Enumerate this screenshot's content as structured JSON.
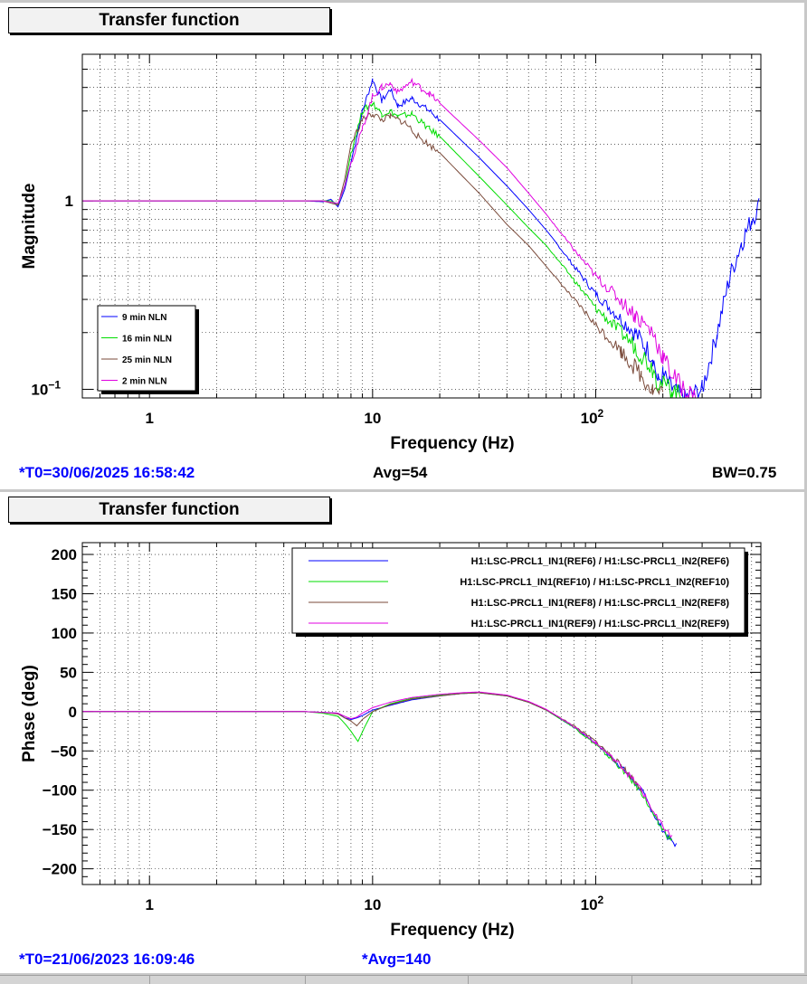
{
  "panels": {
    "top": {
      "title": "Transfer function",
      "status_t0": "*T0=30/06/2025 16:58:42",
      "status_avg": "Avg=54",
      "status_bw": "BW=0.75"
    },
    "bottom": {
      "title": "Transfer function",
      "status_t0": "*T0=21/06/2023 16:09:46",
      "status_avg": "*Avg=140"
    }
  },
  "colors": {
    "blue": "#0000ff",
    "green": "#00dd00",
    "brown": "#7a4a3a",
    "magenta": "#e000e0"
  },
  "chart_data": [
    {
      "type": "line",
      "title": "",
      "xlabel": "Frequency (Hz)",
      "ylabel": "Magnitude",
      "xscale": "log",
      "yscale": "log",
      "xlim": [
        0.5,
        550
      ],
      "ylim": [
        0.09,
        6
      ],
      "x_ticks": [
        "1",
        "10",
        "10²"
      ],
      "y_ticks": [
        "10⁻¹",
        "1"
      ],
      "grid": true,
      "legend_position": "bottom-left",
      "series": [
        {
          "name": "9 min NLN",
          "color": "#0000ff",
          "points": [
            [
              0.5,
              1
            ],
            [
              5,
              1
            ],
            [
              6,
              0.99
            ],
            [
              6.5,
              1.02
            ],
            [
              7,
              0.93
            ],
            [
              7.5,
              1.15
            ],
            [
              8,
              1.6
            ],
            [
              9,
              3
            ],
            [
              10,
              4.4
            ],
            [
              11,
              3.4
            ],
            [
              12,
              3.9
            ],
            [
              13,
              3.2
            ],
            [
              15,
              3.5
            ],
            [
              18,
              3.0
            ],
            [
              20,
              2.7
            ],
            [
              30,
              1.7
            ],
            [
              40,
              1.2
            ],
            [
              50,
              0.9
            ],
            [
              60,
              0.7
            ],
            [
              80,
              0.45
            ],
            [
              100,
              0.32
            ],
            [
              150,
              0.2
            ],
            [
              180,
              0.15
            ],
            [
              190,
              0.11
            ],
            [
              200,
              0.12
            ],
            [
              220,
              0.1
            ],
            [
              250,
              0.09
            ],
            [
              300,
              0.1
            ],
            [
              350,
              0.2
            ],
            [
              400,
              0.4
            ],
            [
              450,
              0.6
            ],
            [
              500,
              0.8
            ],
            [
              540,
              0.95
            ]
          ]
        },
        {
          "name": "16 min NLN",
          "color": "#00dd00",
          "points": [
            [
              0.5,
              1
            ],
            [
              5,
              1
            ],
            [
              6,
              1.0
            ],
            [
              6.5,
              1.0
            ],
            [
              7,
              0.96
            ],
            [
              7.5,
              1.2
            ],
            [
              8,
              1.8
            ],
            [
              9,
              3
            ],
            [
              10,
              3.3
            ],
            [
              11,
              2.9
            ],
            [
              12,
              3.0
            ],
            [
              13,
              2.8
            ],
            [
              15,
              2.9
            ],
            [
              18,
              2.4
            ],
            [
              20,
              2.2
            ],
            [
              30,
              1.35
            ],
            [
              40,
              0.95
            ],
            [
              50,
              0.72
            ],
            [
              60,
              0.58
            ],
            [
              80,
              0.38
            ],
            [
              100,
              0.27
            ],
            [
              150,
              0.17
            ],
            [
              180,
              0.13
            ],
            [
              190,
              0.11
            ],
            [
              220,
              0.1
            ],
            [
              250,
              0.09
            ]
          ]
        },
        {
          "name": "25 min NLN",
          "color": "#7a4a3a",
          "points": [
            [
              0.5,
              1
            ],
            [
              5,
              1
            ],
            [
              6,
              1.0
            ],
            [
              7,
              0.95
            ],
            [
              7.5,
              1.3
            ],
            [
              8,
              2.0
            ],
            [
              9,
              2.7
            ],
            [
              10,
              2.9
            ],
            [
              11,
              2.7
            ],
            [
              12,
              2.8
            ],
            [
              14,
              2.6
            ],
            [
              16,
              2.2
            ],
            [
              20,
              1.8
            ],
            [
              30,
              1.1
            ],
            [
              40,
              0.75
            ],
            [
              50,
              0.58
            ],
            [
              60,
              0.45
            ],
            [
              80,
              0.3
            ],
            [
              100,
              0.22
            ],
            [
              130,
              0.16
            ],
            [
              160,
              0.12
            ],
            [
              180,
              0.1
            ],
            [
              200,
              0.095
            ]
          ]
        },
        {
          "name": "2 min NLN",
          "color": "#e000e0",
          "points": [
            [
              0.5,
              1
            ],
            [
              5,
              1
            ],
            [
              6,
              1.0
            ],
            [
              7,
              0.97
            ],
            [
              7.5,
              1.2
            ],
            [
              8,
              1.6
            ],
            [
              9,
              2.4
            ],
            [
              10,
              3.6
            ],
            [
              11,
              4.0
            ],
            [
              12,
              4.2
            ],
            [
              13,
              3.8
            ],
            [
              15,
              4.3
            ],
            [
              18,
              3.7
            ],
            [
              20,
              3.3
            ],
            [
              30,
              2.1
            ],
            [
              40,
              1.5
            ],
            [
              50,
              1.1
            ],
            [
              60,
              0.85
            ],
            [
              80,
              0.55
            ],
            [
              100,
              0.4
            ],
            [
              150,
              0.25
            ],
            [
              180,
              0.2
            ],
            [
              200,
              0.15
            ],
            [
              220,
              0.12
            ],
            [
              250,
              0.1
            ],
            [
              280,
              0.09
            ]
          ]
        }
      ]
    },
    {
      "type": "line",
      "title": "",
      "xlabel": "Frequency (Hz)",
      "ylabel": "Phase (deg)",
      "xscale": "log",
      "xlim": [
        0.5,
        550
      ],
      "ylim": [
        -220,
        215
      ],
      "y_ticks": [
        200,
        150,
        100,
        50,
        0,
        -50,
        -100,
        -150,
        -200
      ],
      "x_ticks": [
        "1",
        "10",
        "10²"
      ],
      "grid": true,
      "legend_position": "top-right",
      "series": [
        {
          "name": "H1:LSC-PRCL1_IN1(REF6) / H1:LSC-PRCL1_IN2(REF6)",
          "color": "#0000ff",
          "points": [
            [
              0.5,
              0
            ],
            [
              5,
              0
            ],
            [
              6,
              -1
            ],
            [
              7,
              -2
            ],
            [
              7.5,
              -8
            ],
            [
              8,
              -10
            ],
            [
              8.5,
              -8
            ],
            [
              9,
              -5
            ],
            [
              10,
              2
            ],
            [
              12,
              8
            ],
            [
              15,
              15
            ],
            [
              20,
              20
            ],
            [
              25,
              23
            ],
            [
              30,
              24
            ],
            [
              40,
              20
            ],
            [
              50,
              12
            ],
            [
              60,
              2
            ],
            [
              80,
              -20
            ],
            [
              100,
              -40
            ],
            [
              130,
              -70
            ],
            [
              160,
              -100
            ],
            [
              190,
              -140
            ],
            [
              210,
              -160
            ],
            [
              230,
              -170
            ]
          ]
        },
        {
          "name": "H1:LSC-PRCL1_IN1(REF10) / H1:LSC-PRCL1_IN2(REF10)",
          "color": "#00dd00",
          "points": [
            [
              0.5,
              0
            ],
            [
              5,
              0
            ],
            [
              6,
              -2
            ],
            [
              7,
              -6
            ],
            [
              7.5,
              -15
            ],
            [
              8,
              -25
            ],
            [
              8.6,
              -38
            ],
            [
              9.2,
              -20
            ],
            [
              10,
              0
            ],
            [
              12,
              10
            ],
            [
              15,
              17
            ],
            [
              20,
              21
            ],
            [
              25,
              23
            ],
            [
              30,
              24
            ],
            [
              40,
              20
            ],
            [
              50,
              12
            ],
            [
              60,
              2
            ],
            [
              80,
              -20
            ],
            [
              100,
              -42
            ],
            [
              130,
              -72
            ],
            [
              160,
              -102
            ],
            [
              190,
              -142
            ],
            [
              220,
              -165
            ]
          ]
        },
        {
          "name": "H1:LSC-PRCL1_IN1(REF8) / H1:LSC-PRCL1_IN2(REF8)",
          "color": "#7a4a3a",
          "points": [
            [
              0.5,
              0
            ],
            [
              5,
              0
            ],
            [
              6,
              -1
            ],
            [
              7,
              -3
            ],
            [
              7.5,
              -8
            ],
            [
              8,
              -12
            ],
            [
              8.5,
              -18
            ],
            [
              9,
              -10
            ],
            [
              10,
              0
            ],
            [
              12,
              9
            ],
            [
              15,
              16
            ],
            [
              20,
              20
            ],
            [
              25,
              23
            ],
            [
              30,
              24
            ],
            [
              40,
              20
            ],
            [
              50,
              12
            ],
            [
              60,
              2
            ],
            [
              80,
              -18
            ],
            [
              100,
              -38
            ],
            [
              130,
              -68
            ],
            [
              160,
              -98
            ]
          ]
        },
        {
          "name": "H1:LSC-PRCL1_IN1(REF9) / H1:LSC-PRCL1_IN2(REF9)",
          "color": "#e000e0",
          "points": [
            [
              0.5,
              0
            ],
            [
              5,
              0
            ],
            [
              6,
              -1
            ],
            [
              7,
              -2
            ],
            [
              7.5,
              -6
            ],
            [
              8,
              -9
            ],
            [
              8.5,
              -7
            ],
            [
              9,
              -2
            ],
            [
              10,
              5
            ],
            [
              12,
              12
            ],
            [
              15,
              18
            ],
            [
              20,
              22
            ],
            [
              25,
              24
            ],
            [
              30,
              25
            ],
            [
              40,
              21
            ],
            [
              50,
              13
            ],
            [
              60,
              3
            ],
            [
              80,
              -19
            ],
            [
              100,
              -40
            ],
            [
              130,
              -69
            ],
            [
              160,
              -99
            ],
            [
              190,
              -138
            ],
            [
              220,
              -160
            ]
          ]
        }
      ]
    }
  ]
}
